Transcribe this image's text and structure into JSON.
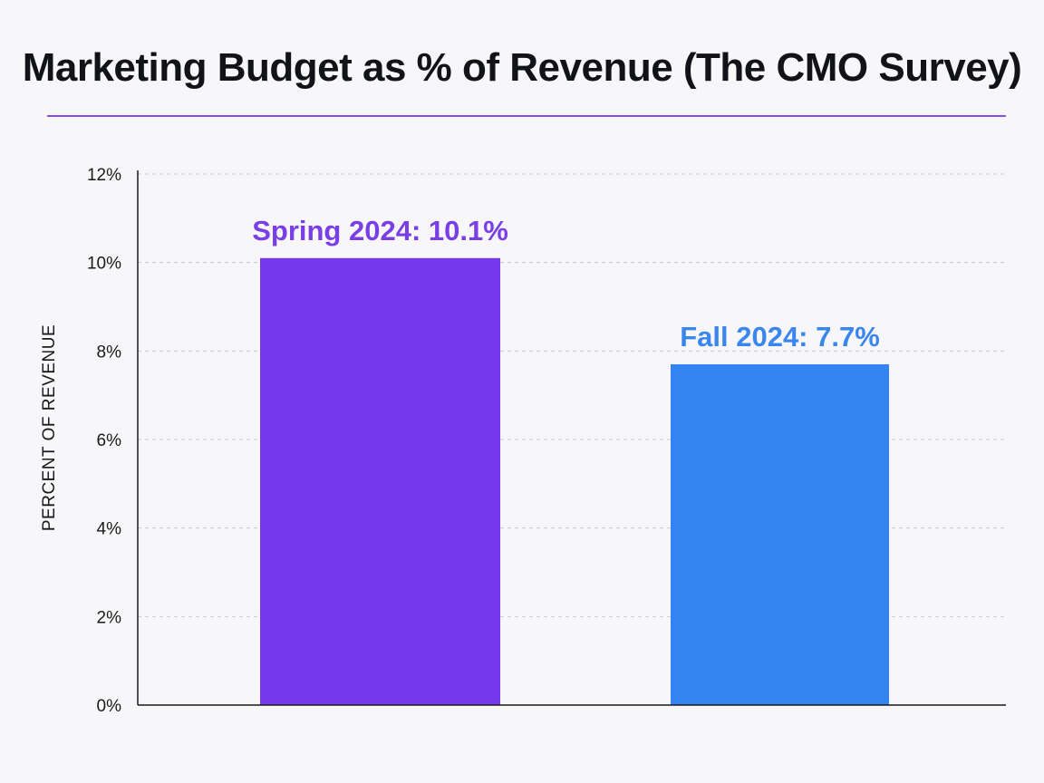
{
  "chart_data": {
    "type": "bar",
    "title": "Marketing Budget as % of Revenue (The CMO Survey)",
    "xlabel": "",
    "ylabel": "PERCENT OF REVENUE",
    "ylim": [
      0,
      12
    ],
    "yticks": [
      0,
      2,
      4,
      6,
      8,
      10,
      12
    ],
    "ytick_labels": [
      "0%",
      "2%",
      "4%",
      "6%",
      "8%",
      "10%",
      "12%"
    ],
    "grid": "horizontal dashed",
    "legend": "none",
    "categories": [
      "Spring 2024",
      "Fall 2024"
    ],
    "values": [
      10.1,
      7.7
    ],
    "data_labels": [
      "Spring 2024: 10.1%",
      "Fall 2024: 7.7%"
    ],
    "colors": [
      "#7638ea",
      "#3483f2"
    ],
    "label_colors": [
      "#7a3ee6",
      "#3a86ee"
    ]
  },
  "colors": {
    "title_rule": "#8a4cf0",
    "gridline": "#c9c9cc",
    "axis": "#1a1a1a"
  }
}
